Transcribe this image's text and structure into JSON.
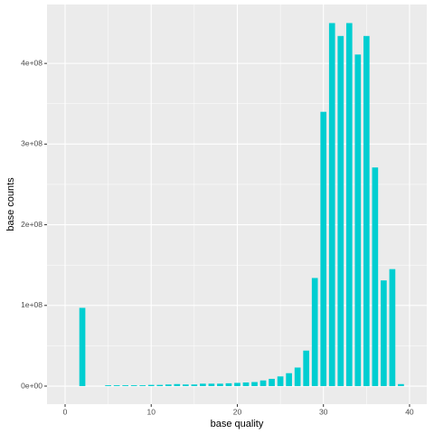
{
  "chart_data": {
    "type": "bar",
    "x_label": "base quality",
    "y_label": "base counts",
    "x": [
      2,
      5,
      6,
      7,
      8,
      9,
      10,
      11,
      12,
      13,
      14,
      15,
      16,
      17,
      18,
      19,
      20,
      21,
      22,
      23,
      24,
      25,
      26,
      27,
      28,
      29,
      30,
      31,
      32,
      33,
      34,
      35,
      36,
      37,
      38,
      39
    ],
    "values": [
      97000000,
      1000000,
      1000000,
      1000000,
      1000000,
      1000000,
      1500000,
      1500000,
      2000000,
      2500000,
      2000000,
      2000000,
      3000000,
      3000000,
      3000000,
      3500000,
      4000000,
      4500000,
      5000000,
      7000000,
      9000000,
      12000000,
      16000000,
      23000000,
      44000000,
      134000000,
      340000000,
      450000000,
      434000000,
      450000000,
      411000000,
      434000000,
      271000000,
      131000000,
      145000000,
      2500000
    ],
    "color": "#00ced1",
    "xlim": [
      -2.1,
      42.0
    ],
    "xticks": [
      0,
      10,
      20,
      30,
      40
    ],
    "ylim": [
      -22400000,
      473000000
    ],
    "yticks": [
      {
        "value": 0,
        "label": "0e+00"
      },
      {
        "value": 100000000,
        "label": "1e+08"
      },
      {
        "value": 200000000,
        "label": "2e+08"
      },
      {
        "value": 300000000,
        "label": "3e+08"
      },
      {
        "value": 400000000,
        "label": "4e+08"
      }
    ],
    "grid": true
  }
}
